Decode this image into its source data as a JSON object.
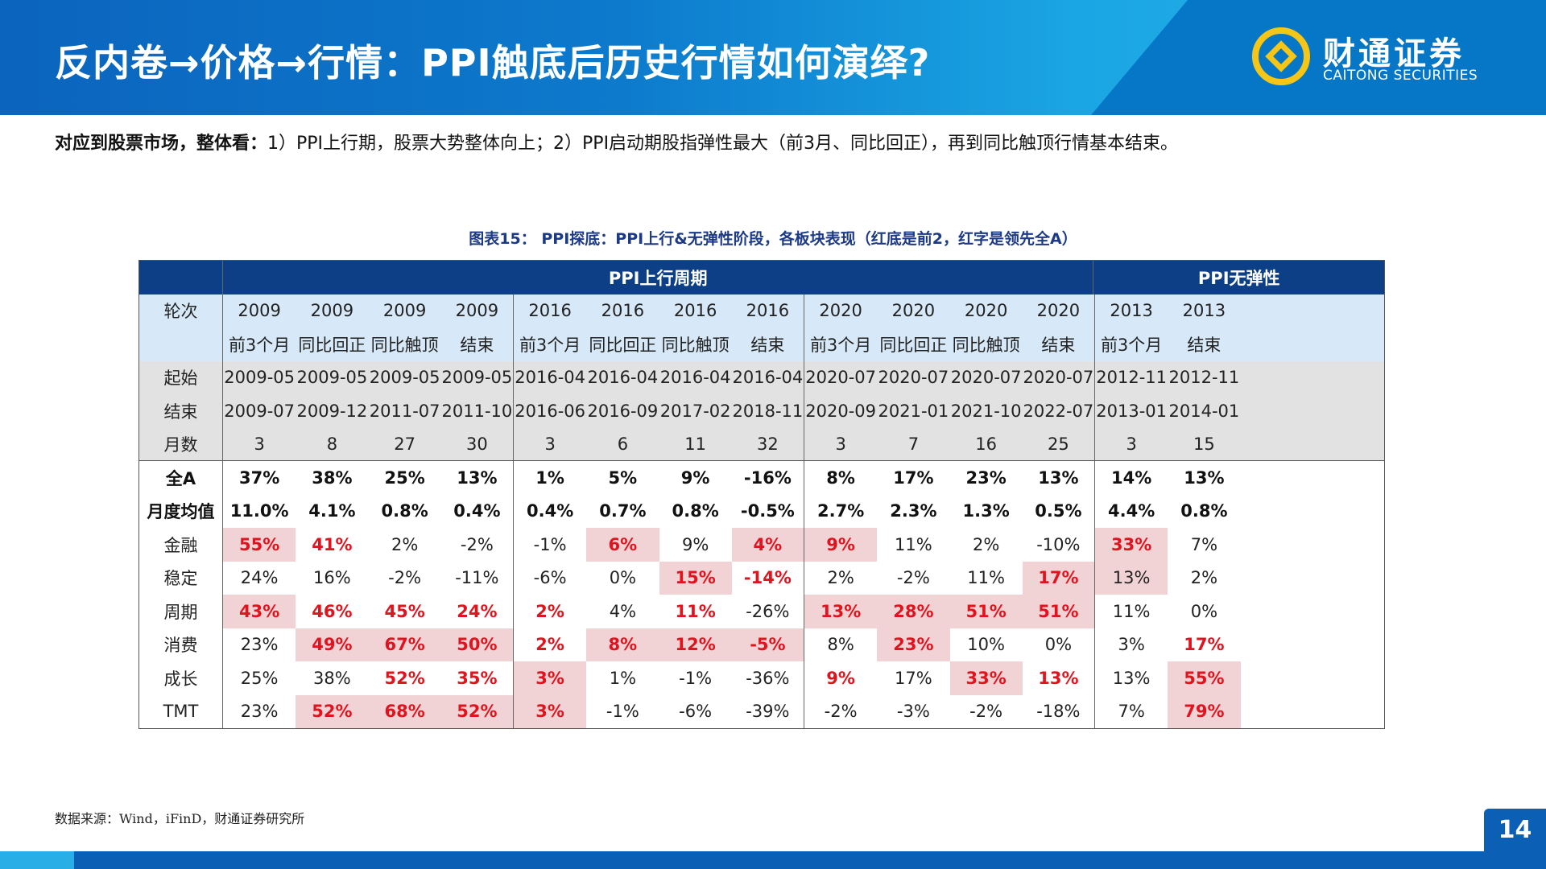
{
  "header": {
    "title": "反内卷→价格→行情：PPI触底后历史行情如何演绎?"
  },
  "logo": {
    "cn": "财通证券",
    "en": "CAITONG SECURITIES"
  },
  "summary": {
    "bold": "对应到股票市场，整体看：",
    "text": "1）PPI上行期，股票大势整体向上；2）PPI启动期股指弹性最大（前3月、同比回正），再到同比触顶行情基本结束。"
  },
  "caption": "图表15： PPI探底：PPI上行&无弹性阶段，各板块表现（红底是前2，红字是领先全A）",
  "table": {
    "group_headers": [
      {
        "label": "PPI上行周期",
        "span": 12
      },
      {
        "label": "PPI无弹性",
        "span": 4
      }
    ],
    "header_rows": [
      {
        "label": "轮次",
        "values": [
          "2009",
          "2009",
          "2009",
          "2009",
          "2016",
          "2016",
          "2016",
          "2016",
          "2020",
          "2020",
          "2020",
          "2020",
          "2013",
          "2013"
        ]
      },
      {
        "label": "",
        "values": [
          "前3个月",
          "同比回正",
          "同比触顶",
          "结束",
          "前3个月",
          "同比回正",
          "同比触顶",
          "结束",
          "前3个月",
          "同比回正",
          "同比触顶",
          "结束",
          "前3个月",
          "结束"
        ]
      }
    ],
    "info_rows": [
      {
        "label": "起始",
        "values": [
          "2009-05",
          "2009-05",
          "2009-05",
          "2009-05",
          "2016-04",
          "2016-04",
          "2016-04",
          "2016-04",
          "2020-07",
          "2020-07",
          "2020-07",
          "2020-07",
          "2012-11",
          "2012-11"
        ]
      },
      {
        "label": "结束",
        "values": [
          "2009-07",
          "2009-12",
          "2011-07",
          "2011-10",
          "2016-06",
          "2016-09",
          "2017-02",
          "2018-11",
          "2020-09",
          "2021-01",
          "2021-10",
          "2022-07",
          "2013-01",
          "2014-01"
        ]
      },
      {
        "label": "月数",
        "values": [
          "3",
          "8",
          "27",
          "30",
          "3",
          "6",
          "11",
          "32",
          "3",
          "7",
          "16",
          "25",
          "3",
          "15"
        ]
      }
    ],
    "summary_rows": [
      {
        "label": "全A",
        "values": [
          "37%",
          "38%",
          "25%",
          "13%",
          "1%",
          "5%",
          "9%",
          "-16%",
          "8%",
          "17%",
          "23%",
          "13%",
          "14%",
          "13%"
        ]
      },
      {
        "label": "月度均值",
        "values": [
          "11.0%",
          "4.1%",
          "0.8%",
          "0.4%",
          "0.4%",
          "0.7%",
          "0.8%",
          "-0.5%",
          "2.7%",
          "2.3%",
          "1.3%",
          "0.5%",
          "4.4%",
          "0.8%"
        ]
      }
    ],
    "sector_rows": [
      {
        "label": "金融",
        "values": [
          "55%",
          "41%",
          "2%",
          "-2%",
          "-1%",
          "6%",
          "9%",
          "4%",
          "9%",
          "11%",
          "2%",
          "-10%",
          "33%",
          "7%"
        ],
        "styles": [
          "h",
          "r",
          "",
          "",
          "",
          "h",
          "",
          "h",
          "h",
          "",
          "",
          "",
          "h",
          ""
        ]
      },
      {
        "label": "稳定",
        "values": [
          "24%",
          "16%",
          "-2%",
          "-11%",
          "-6%",
          "0%",
          "15%",
          "-14%",
          "2%",
          "-2%",
          "11%",
          "17%",
          "13%",
          "2%"
        ],
        "styles": [
          "",
          "",
          "",
          "",
          "",
          "",
          "h",
          "r",
          "",
          "",
          "",
          "h",
          "b",
          ""
        ]
      },
      {
        "label": "周期",
        "values": [
          "43%",
          "46%",
          "45%",
          "24%",
          "2%",
          "4%",
          "11%",
          "-26%",
          "13%",
          "28%",
          "51%",
          "51%",
          "11%",
          "0%"
        ],
        "styles": [
          "h",
          "r",
          "r",
          "r",
          "r",
          "",
          "r",
          "",
          "h",
          "h",
          "h",
          "h",
          "",
          ""
        ]
      },
      {
        "label": "消费",
        "values": [
          "23%",
          "49%",
          "67%",
          "50%",
          "2%",
          "8%",
          "12%",
          "-5%",
          "8%",
          "23%",
          "10%",
          "0%",
          "3%",
          "17%"
        ],
        "styles": [
          "",
          "h",
          "h",
          "h",
          "r",
          "h",
          "h",
          "h",
          "",
          "h",
          "",
          "",
          "",
          "r"
        ]
      },
      {
        "label": "成长",
        "values": [
          "25%",
          "38%",
          "52%",
          "35%",
          "3%",
          "1%",
          "-1%",
          "-36%",
          "9%",
          "17%",
          "33%",
          "13%",
          "13%",
          "55%"
        ],
        "styles": [
          "",
          "",
          "r",
          "r",
          "h",
          "",
          "",
          "",
          "r",
          "",
          "h",
          "r",
          "",
          "h"
        ]
      },
      {
        "label": "TMT",
        "values": [
          "23%",
          "52%",
          "68%",
          "52%",
          "3%",
          "-1%",
          "-6%",
          "-39%",
          "-2%",
          "-3%",
          "-2%",
          "-18%",
          "7%",
          "79%"
        ],
        "styles": [
          "",
          "h",
          "h",
          "h",
          "h",
          "",
          "",
          "",
          "",
          "",
          "",
          "",
          "",
          "h"
        ]
      }
    ]
  },
  "source": "数据来源：Wind，iFinD，财通证券研究所",
  "page_number": "14",
  "colors": {
    "header_blue": "#0b64bd",
    "table_band": "#0d3f86",
    "highlight_bg": "#f2d3d5",
    "highlight_text": "#e0141e",
    "caption": "#1c3a86"
  }
}
